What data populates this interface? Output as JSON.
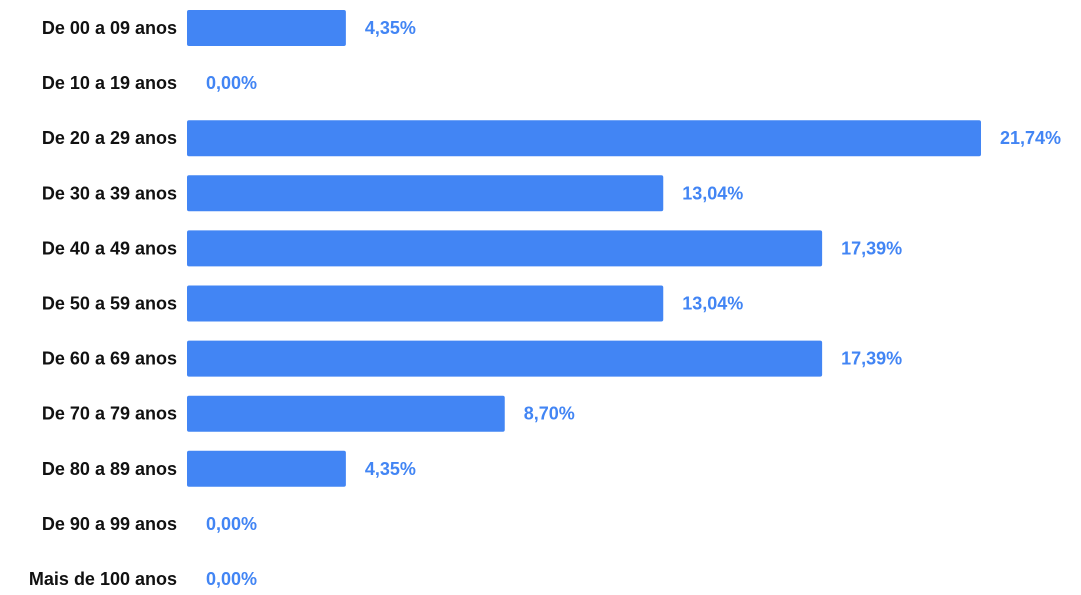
{
  "chart_data": {
    "type": "bar",
    "orientation": "horizontal",
    "categories": [
      "De 00 a 09 anos",
      "De 10 a 19 anos",
      "De 20 a 29 anos",
      "De 30 a 39 anos",
      "De 40 a 49 anos",
      "De 50 a 59 anos",
      "De 60 a 69 anos",
      "De 70 a 79 anos",
      "De 80 a 89 anos",
      "De 90 a 99 anos",
      "Mais de 100 anos"
    ],
    "values": [
      4.35,
      0,
      21.74,
      13.04,
      17.39,
      13.04,
      17.39,
      8.7,
      4.35,
      0,
      0
    ],
    "data_labels": [
      "4,35%",
      "0,00%",
      "21,74%",
      "13,04%",
      "17,39%",
      "13,04%",
      "17,39%",
      "8,70%",
      "4,35%",
      "0,00%",
      "0,00%"
    ],
    "title": "",
    "xlabel": "",
    "ylabel": "",
    "xlim": [
      0,
      21.74
    ],
    "grid": false,
    "legend": "none",
    "colors": {
      "bar": "#4285f4",
      "value_label": "#4285f4",
      "category_label": "#111111"
    }
  }
}
